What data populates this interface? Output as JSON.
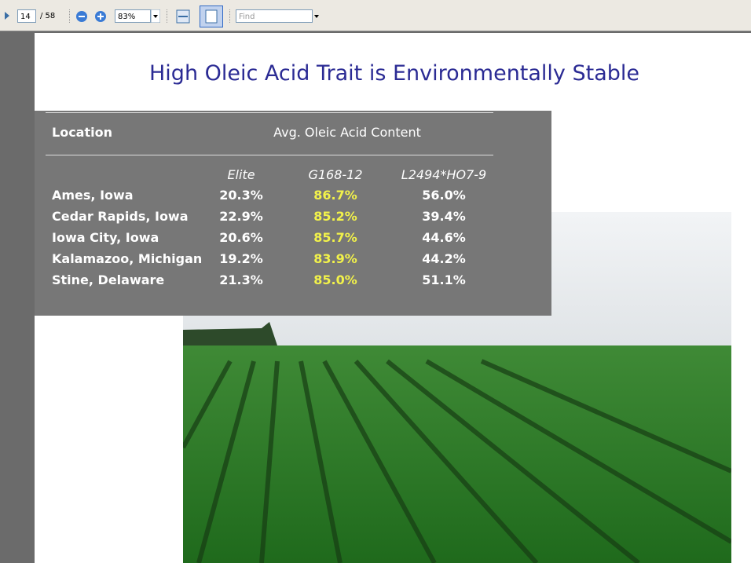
{
  "toolbar": {
    "page": "14",
    "page_count": "/ 58",
    "zoom": "83%",
    "find": "Find"
  },
  "slide": {
    "title": "High Oleic Acid Trait is Environmentally Stable",
    "table": {
      "header": [
        "Location",
        "Avg. Oleic Acid Content"
      ],
      "columns": [
        "Elite",
        "G168-12",
        "L2494*HO7-9"
      ],
      "rows": [
        [
          "Ames, Iowa",
          "20.3%",
          "86.7%",
          "56.0%"
        ],
        [
          "Cedar Rapids, Iowa",
          "22.9%",
          "85.2%",
          "39.4%"
        ],
        [
          "Iowa City, Iowa",
          "20.6%",
          "85.7%",
          "44.6%"
        ],
        [
          "Kalamazoo, Michigan",
          "19.2%",
          "83.9%",
          "44.2%"
        ],
        [
          "Stine, Delaware",
          "21.3%",
          "85.0%",
          "51.1%"
        ]
      ]
    }
  }
}
